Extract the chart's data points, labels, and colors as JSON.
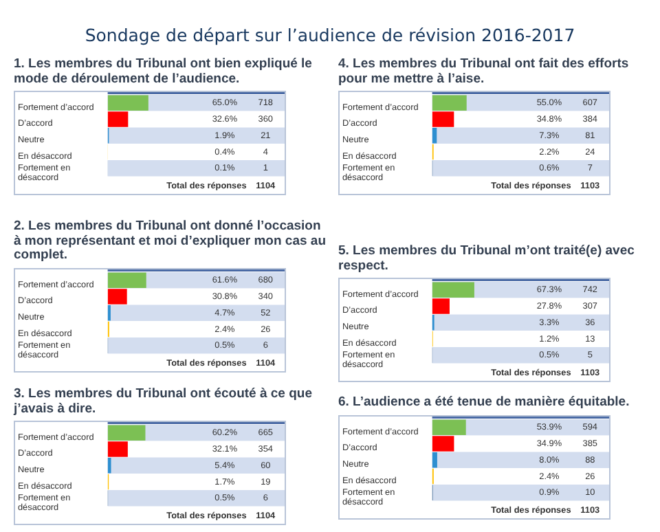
{
  "chart_data": [
    {
      "type": "bar",
      "orientation": "horizontal",
      "title": "Sondage de départ sur l’audience de révision 2016-2017",
      "subtitle": "1. Les membres du Tribunal ont bien expliqué le mode de déroulement de l’audience.",
      "categories": [
        "Fortement d’accord",
        "D’accord",
        "Neutre",
        "En désaccord",
        "Fortement en désaccord"
      ],
      "values": [
        65.0,
        32.6,
        1.9,
        0.4,
        0.1
      ],
      "value_labels": [
        "65.0%",
        "32.6%",
        "1.9%",
        "0.4%",
        "0.1%"
      ],
      "colors": [
        "#7cc054",
        "#ff0000",
        "#2e8fd0",
        "#ffc000",
        "#1f4e79"
      ],
      "tick_labels": "y",
      "annotations": [
        "718",
        "360",
        "21",
        "4",
        "1",
        "Total des réponses",
        "1104"
      ]
    },
    {
      "type": "bar",
      "orientation": "horizontal",
      "title": "2. Les membres du Tribunal ont donné l’occasion à mon représentant et moi d’expliquer mon cas au complet.",
      "categories": [
        "Fortement d’accord",
        "D’accord",
        "Neutre",
        "En désaccord",
        "Fortement en désaccord"
      ],
      "values": [
        61.6,
        30.8,
        4.7,
        2.4,
        0.5
      ],
      "value_labels": [
        "61.6%",
        "30.8%",
        "4.7%",
        "2.4%",
        "0.5%"
      ],
      "colors": [
        "#7cc054",
        "#ff0000",
        "#2e8fd0",
        "#ffc000",
        "#1f4e79"
      ],
      "tick_labels": "y",
      "annotations": [
        "680",
        "340",
        "52",
        "26",
        "6",
        "Total des réponses",
        "1104"
      ]
    },
    {
      "type": "bar",
      "orientation": "horizontal",
      "title": "3. Les membres du Tribunal ont écouté à ce que j’avais à dire.",
      "categories": [
        "Fortement d’accord",
        "D’accord",
        "Neutre",
        "En désaccord",
        "Fortement en désaccord"
      ],
      "values": [
        60.2,
        32.1,
        5.4,
        1.7,
        0.5
      ],
      "value_labels": [
        "60.2%",
        "32.1%",
        "5.4%",
        "1.7%",
        "0.5%"
      ],
      "colors": [
        "#7cc054",
        "#ff0000",
        "#2e8fd0",
        "#ffc000",
        "#1f4e79"
      ],
      "tick_labels": "y",
      "annotations": [
        "665",
        "354",
        "60",
        "19",
        "6",
        "Total des réponses",
        "1104"
      ]
    },
    {
      "type": "bar",
      "orientation": "horizontal",
      "title": "4. Les membres du Tribunal ont fait des efforts pour me mettre à l’aise.",
      "categories": [
        "Fortement d’accord",
        "D’accord",
        "Neutre",
        "En désaccord",
        "Fortement en désaccord"
      ],
      "values": [
        55.0,
        34.8,
        7.3,
        2.2,
        0.6
      ],
      "value_labels": [
        "55.0%",
        "34.8%",
        "7.3%",
        "2.2%",
        "0.6%"
      ],
      "colors": [
        "#7cc054",
        "#ff0000",
        "#2e8fd0",
        "#ffc000",
        "#1f4e79"
      ],
      "tick_labels": "y",
      "annotations": [
        "607",
        "384",
        "81",
        "24",
        "7",
        "Total des réponses",
        "1103"
      ]
    },
    {
      "type": "bar",
      "orientation": "horizontal",
      "title": "5. Les membres du Tribunal m’ont traité(e) avec respect.",
      "categories": [
        "Fortement d’accord",
        "D’accord",
        "Neutre",
        "En désaccord",
        "Fortement en désaccord"
      ],
      "values": [
        67.3,
        27.8,
        3.3,
        1.2,
        0.5
      ],
      "value_labels": [
        "67.3%",
        "27.8%",
        "3.3%",
        "1.2%",
        "0.5%"
      ],
      "colors": [
        "#7cc054",
        "#ff0000",
        "#2e8fd0",
        "#ffc000",
        "#1f4e79"
      ],
      "tick_labels": "y",
      "annotations": [
        "742",
        "307",
        "36",
        "13",
        "5",
        "Total des réponses",
        "1103"
      ]
    },
    {
      "type": "bar",
      "orientation": "horizontal",
      "title": "6. L’audience a été tenue de manière équitable.",
      "categories": [
        "Fortement d’accord",
        "D’accord",
        "Neutre",
        "En désaccord",
        "Fortement en désaccord"
      ],
      "values": [
        53.9,
        34.9,
        8.0,
        2.4,
        0.9
      ],
      "value_labels": [
        "53.9%",
        "34.9%",
        "8.0%",
        "2.4%",
        "0.9%"
      ],
      "colors": [
        "#7cc054",
        "#ff0000",
        "#2e8fd0",
        "#ffc000",
        "#1f4e79"
      ],
      "tick_labels": "y",
      "annotations": [
        "594",
        "385",
        "88",
        "26",
        "10",
        "Total des réponses",
        "1103"
      ]
    }
  ]
}
